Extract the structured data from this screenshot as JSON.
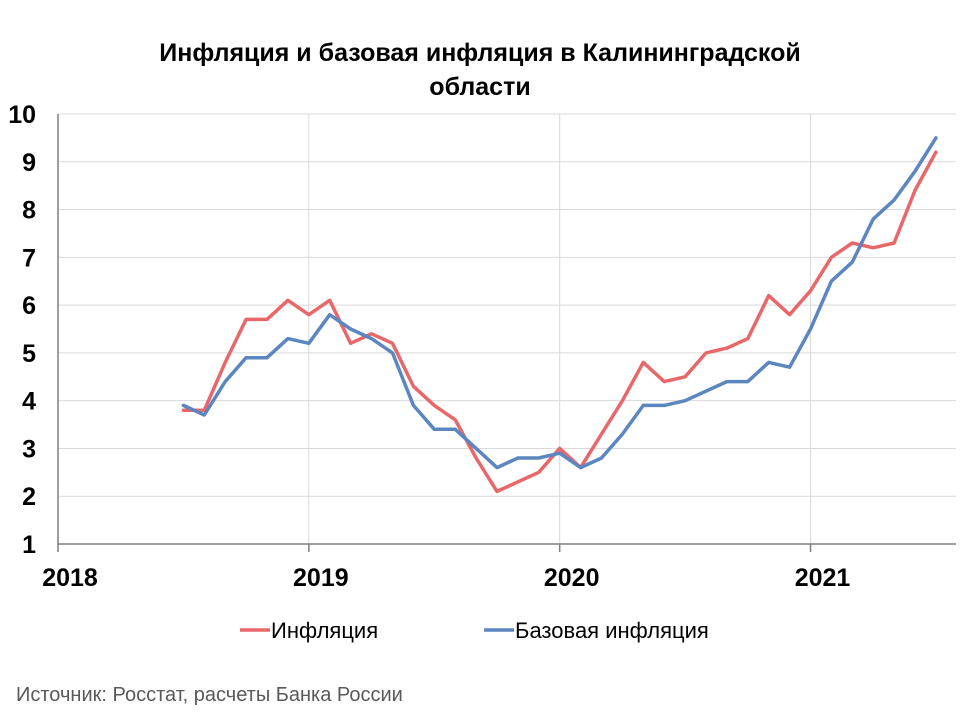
{
  "chart_data": {
    "type": "line",
    "title_line1": "Инфляция и базовая инфляция в Калининградской",
    "title_line2": "области",
    "xlabel": "",
    "ylabel": "",
    "xlim": [
      2018.0,
      2021.58
    ],
    "ylim": [
      1,
      10
    ],
    "y_ticks": [
      "1",
      "2",
      "3",
      "4",
      "5",
      "6",
      "7",
      "8",
      "9",
      "10"
    ],
    "x_ticks": [
      {
        "value": 2018,
        "label": "2018"
      },
      {
        "value": 2019,
        "label": "2019"
      },
      {
        "value": 2020,
        "label": "2020"
      },
      {
        "value": 2021,
        "label": "2021"
      }
    ],
    "grid": true,
    "legend_position": "bottom",
    "x": [
      "2018-07",
      "2018-08",
      "2018-09",
      "2018-10",
      "2018-11",
      "2018-12",
      "2019-01",
      "2019-02",
      "2019-03",
      "2019-04",
      "2019-05",
      "2019-06",
      "2019-07",
      "2019-08",
      "2019-09",
      "2019-10",
      "2019-11",
      "2019-12",
      "2020-01",
      "2020-02",
      "2020-03",
      "2020-04",
      "2020-05",
      "2020-06",
      "2020-07",
      "2020-08",
      "2020-09",
      "2020-10",
      "2020-11",
      "2020-12",
      "2021-01",
      "2021-02",
      "2021-03",
      "2021-04",
      "2021-05",
      "2021-06",
      "2021-07"
    ],
    "series": [
      {
        "name": "Инфляция",
        "color": "#E8686A",
        "values": [
          3.8,
          3.8,
          4.8,
          5.7,
          5.7,
          6.1,
          5.8,
          6.1,
          5.2,
          5.4,
          5.2,
          4.3,
          3.9,
          3.6,
          2.8,
          2.1,
          2.3,
          2.5,
          3.0,
          2.6,
          3.3,
          4.0,
          4.8,
          4.4,
          4.5,
          5.0,
          5.1,
          5.3,
          6.2,
          5.8,
          6.3,
          7.0,
          7.3,
          7.2,
          7.3,
          8.4,
          9.2
        ]
      },
      {
        "name": "Базовая инфляция",
        "color": "#5B86BF",
        "values": [
          3.9,
          3.7,
          4.4,
          4.9,
          4.9,
          5.3,
          5.2,
          5.8,
          5.5,
          5.3,
          5.0,
          3.9,
          3.4,
          3.4,
          3.0,
          2.6,
          2.8,
          2.8,
          2.9,
          2.6,
          2.8,
          3.3,
          3.9,
          3.9,
          4.0,
          4.2,
          4.4,
          4.4,
          4.8,
          4.7,
          5.5,
          6.5,
          6.9,
          7.8,
          8.2,
          8.8,
          9.5
        ]
      }
    ]
  },
  "source": "Источник: Росстат, расчеты Банка России"
}
